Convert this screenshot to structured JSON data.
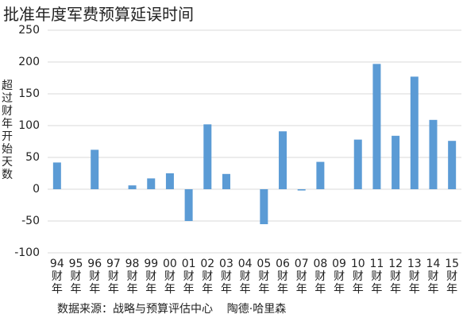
{
  "chart_data": {
    "type": "bar",
    "title": "批准年度军费预算延误时间",
    "y_label": "超过财年开始天数",
    "source": "数据来源：战略与预算评估中心    陶德·哈里森",
    "categories": [
      "94财年",
      "95财年",
      "96财年",
      "97财年",
      "98财年",
      "99财年",
      "00财年",
      "01财年",
      "02财年",
      "03财年",
      "04财年",
      "05财年",
      "06财年",
      "07财年",
      "08财年",
      "09财年",
      "10财年",
      "11财年",
      "12财年",
      "13财年",
      "14财年",
      "15财年"
    ],
    "values": [
      42,
      0,
      62,
      0,
      6,
      17,
      25,
      -50,
      102,
      24,
      0,
      -55,
      91,
      -2,
      43,
      0,
      78,
      197,
      84,
      177,
      109,
      76
    ],
    "color": "#5b9bd5",
    "ylim": [
      -100,
      250
    ],
    "yticks": [
      -100,
      -50,
      0,
      50,
      100,
      150,
      200,
      250
    ],
    "grid": true
  }
}
